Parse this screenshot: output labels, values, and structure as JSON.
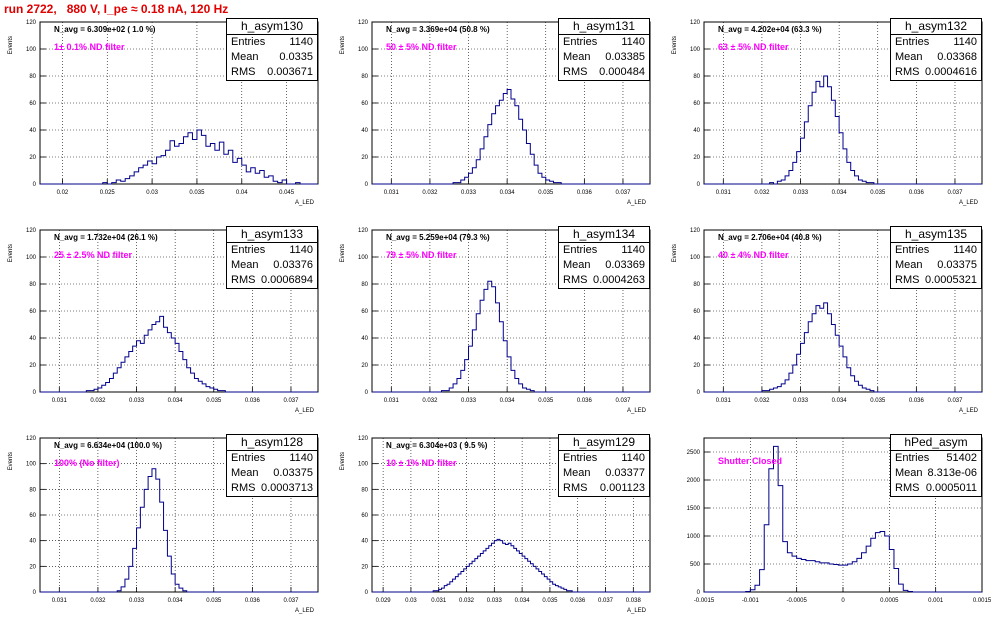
{
  "title": "run 2722,   880 V, I_pe ≈ 0.18 nA, 120 Hz",
  "colors": {
    "title": "#e00000",
    "filter_label": "#ff00ff",
    "line": "#00008b",
    "grid": "#000000"
  },
  "chart_data": [
    {
      "type": "histogram",
      "name": "h_asym130",
      "navg": "N_avg = 6.309e+02 ( 1.0 %)",
      "filter": "1± 0.1% ND filter",
      "stats": {
        "entries_label": "Entries",
        "entries": "1140",
        "mean_label": "Mean",
        "mean": "0.0335",
        "rms_label": "RMS",
        "rms": "0.003671"
      },
      "ylabel": "Events",
      "xlabel": "A_LED",
      "xlim": [
        0.0175,
        0.0485
      ],
      "ylim": [
        0,
        120
      ],
      "xticks": [
        "0.02",
        "0.025",
        "0.03",
        "0.035",
        "0.04",
        "0.045"
      ],
      "yticks": [
        "0",
        "20",
        "40",
        "60",
        "80",
        "100",
        "120"
      ],
      "grid": true,
      "bins": {
        "start": 0.0175,
        "width": 0.0005,
        "counts": [
          0,
          0,
          0,
          0,
          0,
          0,
          0,
          0,
          0,
          0,
          0,
          0,
          0,
          0,
          1,
          0,
          1,
          3,
          2,
          4,
          6,
          9,
          12,
          14,
          17,
          15,
          20,
          21,
          25,
          32,
          28,
          30,
          35,
          38,
          33,
          40,
          36,
          28,
          30,
          25,
          31,
          22,
          25,
          16,
          19,
          14,
          9,
          12,
          8,
          10,
          5,
          6,
          2,
          1,
          3,
          0,
          0,
          1,
          0,
          0,
          0,
          0
        ]
      }
    },
    {
      "type": "histogram",
      "name": "h_asym131",
      "navg": "N_avg = 3.369e+04 (50.8 %)",
      "filter": "50 ± 5% ND filter",
      "stats": {
        "entries_label": "Entries",
        "entries": "1140",
        "mean_label": "Mean",
        "mean": "0.03385",
        "rms_label": "RMS",
        "rms": "0.000484"
      },
      "ylabel": "Events",
      "xlabel": "A_LED",
      "xlim": [
        0.0305,
        0.0377
      ],
      "ylim": [
        0,
        120
      ],
      "xticks": [
        "0.031",
        "0.032",
        "0.033",
        "0.034",
        "0.035",
        "0.036",
        "0.037"
      ],
      "yticks": [
        "0",
        "20",
        "40",
        "60",
        "80",
        "100",
        "120"
      ],
      "grid": true,
      "bins": {
        "start": 0.0305,
        "width": 0.0001,
        "counts": [
          0,
          0,
          0,
          0,
          0,
          0,
          0,
          0,
          0,
          0,
          0,
          0,
          0,
          0,
          0,
          0,
          0,
          0,
          0,
          0,
          0,
          1,
          1,
          3,
          5,
          8,
          12,
          18,
          26,
          35,
          44,
          52,
          58,
          62,
          67,
          70,
          63,
          58,
          48,
          40,
          30,
          22,
          14,
          8,
          5,
          3,
          2,
          1,
          1,
          0,
          0,
          0,
          0,
          0,
          0,
          0,
          0,
          0,
          0,
          0,
          0,
          0,
          0,
          0,
          0,
          0,
          0,
          0,
          0,
          0,
          0,
          0
        ]
      }
    },
    {
      "type": "histogram",
      "name": "h_asym132",
      "navg": "N_avg = 4.202e+04 (63.3 %)",
      "filter": "63 ± 5% ND filter",
      "stats": {
        "entries_label": "Entries",
        "entries": "1140",
        "mean_label": "Mean",
        "mean": "0.03368",
        "rms_label": "RMS",
        "rms": "0.0004616"
      },
      "ylabel": "Events",
      "xlabel": "A_LED",
      "xlim": [
        0.0305,
        0.0377
      ],
      "ylim": [
        0,
        120
      ],
      "xticks": [
        "0.031",
        "0.032",
        "0.033",
        "0.034",
        "0.035",
        "0.036",
        "0.037"
      ],
      "yticks": [
        "0",
        "20",
        "40",
        "60",
        "80",
        "100",
        "120"
      ],
      "grid": true,
      "bins": {
        "start": 0.0305,
        "width": 0.0001,
        "counts": [
          0,
          0,
          0,
          0,
          0,
          0,
          0,
          0,
          0,
          0,
          0,
          0,
          0,
          0,
          0,
          0,
          0,
          1,
          0,
          2,
          3,
          6,
          10,
          16,
          24,
          34,
          46,
          58,
          68,
          76,
          72,
          80,
          72,
          62,
          50,
          38,
          26,
          16,
          10,
          6,
          3,
          2,
          1,
          1,
          0,
          0,
          0,
          0,
          0,
          0,
          0,
          0,
          0,
          0,
          0,
          0,
          0,
          0,
          0,
          0,
          0,
          0,
          0,
          0,
          0,
          0,
          0,
          0,
          0,
          0,
          0,
          0
        ]
      }
    },
    {
      "type": "histogram",
      "name": "h_asym133",
      "navg": "N_avg = 1.732e+04 (26.1 %)",
      "filter": "25 ± 2.5% ND filter",
      "stats": {
        "entries_label": "Entries",
        "entries": "1140",
        "mean_label": "Mean",
        "mean": "0.03376",
        "rms_label": "RMS",
        "rms": "0.0006894"
      },
      "ylabel": "Events",
      "xlabel": "A_LED",
      "xlim": [
        0.0305,
        0.0377
      ],
      "ylim": [
        0,
        120
      ],
      "xticks": [
        "0.031",
        "0.032",
        "0.033",
        "0.034",
        "0.035",
        "0.036",
        "0.037"
      ],
      "yticks": [
        "0",
        "20",
        "40",
        "60",
        "80",
        "100",
        "120"
      ],
      "grid": true,
      "bins": {
        "start": 0.0305,
        "width": 0.0001,
        "counts": [
          0,
          0,
          0,
          0,
          0,
          0,
          0,
          0,
          0,
          0,
          0,
          0,
          1,
          1,
          2,
          3,
          5,
          7,
          10,
          14,
          18,
          22,
          26,
          30,
          34,
          38,
          36,
          42,
          46,
          50,
          52,
          56,
          48,
          44,
          40,
          36,
          30,
          24,
          18,
          14,
          10,
          8,
          6,
          4,
          3,
          2,
          1,
          1,
          0,
          0,
          0,
          0,
          0,
          0,
          0,
          0,
          0,
          0,
          0,
          0,
          0,
          0,
          0,
          0,
          0,
          0,
          0,
          0,
          0,
          0,
          0,
          0
        ]
      }
    },
    {
      "type": "histogram",
      "name": "h_asym134",
      "navg": "N_avg = 5.259e+04 (79.3 %)",
      "filter": "79 ± 5% ND filter",
      "stats": {
        "entries_label": "Entries",
        "entries": "1140",
        "mean_label": "Mean",
        "mean": "0.03369",
        "rms_label": "RMS",
        "rms": "0.0004263"
      },
      "ylabel": "Events",
      "xlabel": "A_LED",
      "xlim": [
        0.0305,
        0.0377
      ],
      "ylim": [
        0,
        120
      ],
      "xticks": [
        "0.031",
        "0.032",
        "0.033",
        "0.034",
        "0.035",
        "0.036",
        "0.037"
      ],
      "yticks": [
        "0",
        "20",
        "40",
        "60",
        "80",
        "100",
        "120"
      ],
      "grid": true,
      "bins": {
        "start": 0.0305,
        "width": 0.0001,
        "counts": [
          0,
          0,
          0,
          0,
          0,
          0,
          0,
          0,
          0,
          0,
          0,
          0,
          0,
          0,
          0,
          0,
          0,
          0,
          1,
          1,
          3,
          6,
          10,
          16,
          24,
          34,
          46,
          58,
          68,
          76,
          82,
          78,
          66,
          52,
          38,
          26,
          16,
          10,
          6,
          3,
          2,
          1,
          0,
          0,
          0,
          0,
          0,
          0,
          0,
          0,
          0,
          0,
          0,
          0,
          0,
          0,
          0,
          0,
          0,
          0,
          0,
          0,
          0,
          0,
          0,
          0,
          0,
          0,
          0,
          0,
          0,
          0
        ]
      }
    },
    {
      "type": "histogram",
      "name": "h_asym135",
      "navg": "N_avg = 2.706e+04 (40.8 %)",
      "filter": "40 ± 4% ND filter",
      "stats": {
        "entries_label": "Entries",
        "entries": "1140",
        "mean_label": "Mean",
        "mean": "0.03375",
        "rms_label": "RMS",
        "rms": "0.0005321"
      },
      "ylabel": "Events",
      "xlabel": "A_LED",
      "xlim": [
        0.0305,
        0.0377
      ],
      "ylim": [
        0,
        120
      ],
      "xticks": [
        "0.031",
        "0.032",
        "0.033",
        "0.034",
        "0.035",
        "0.036",
        "0.037"
      ],
      "yticks": [
        "0",
        "20",
        "40",
        "60",
        "80",
        "100",
        "120"
      ],
      "grid": true,
      "bins": {
        "start": 0.0305,
        "width": 0.0001,
        "counts": [
          0,
          0,
          0,
          0,
          0,
          0,
          0,
          0,
          0,
          0,
          0,
          0,
          0,
          0,
          0,
          1,
          1,
          2,
          3,
          4,
          6,
          9,
          14,
          20,
          28,
          36,
          44,
          52,
          58,
          64,
          62,
          66,
          58,
          50,
          42,
          34,
          26,
          18,
          12,
          8,
          5,
          3,
          2,
          1,
          0,
          0,
          0,
          0,
          0,
          0,
          0,
          0,
          0,
          0,
          0,
          0,
          0,
          0,
          0,
          0,
          0,
          0,
          0,
          0,
          0,
          0,
          0,
          0,
          0,
          0,
          0,
          0
        ]
      }
    },
    {
      "type": "histogram",
      "name": "h_asym128",
      "navg": "N_avg = 6.634e+04 (100.0 %)",
      "filter": "100% (No filter)",
      "stats": {
        "entries_label": "Entries",
        "entries": "1140",
        "mean_label": "Mean",
        "mean": "0.03375",
        "rms_label": "RMS",
        "rms": "0.0003713"
      },
      "ylabel": "Events",
      "xlabel": "A_LED",
      "xlim": [
        0.0305,
        0.0377
      ],
      "ylim": [
        0,
        120
      ],
      "xticks": [
        "0.031",
        "0.032",
        "0.033",
        "0.034",
        "0.035",
        "0.036",
        "0.037"
      ],
      "yticks": [
        "0",
        "20",
        "40",
        "60",
        "80",
        "100",
        "120"
      ],
      "grid": true,
      "bins": {
        "start": 0.0305,
        "width": 0.0001,
        "counts": [
          0,
          0,
          0,
          0,
          0,
          0,
          0,
          0,
          0,
          0,
          0,
          0,
          0,
          0,
          0,
          0,
          0,
          0,
          0,
          0,
          1,
          4,
          10,
          20,
          34,
          50,
          66,
          80,
          90,
          96,
          88,
          70,
          48,
          28,
          14,
          6,
          3,
          1,
          0,
          0,
          0,
          0,
          0,
          0,
          0,
          0,
          0,
          0,
          0,
          0,
          0,
          0,
          0,
          0,
          0,
          0,
          0,
          0,
          0,
          0,
          0,
          0,
          0,
          0,
          0,
          0,
          0,
          0,
          0,
          0,
          0,
          0
        ]
      }
    },
    {
      "type": "histogram",
      "name": "h_asym129",
      "navg": "N_avg = 6.304e+03 ( 9.5 %)",
      "filter": "10 ± 1% ND filter",
      "stats": {
        "entries_label": "Entries",
        "entries": "1140",
        "mean_label": "Mean",
        "mean": "0.03377",
        "rms_label": "RMS",
        "rms": "0.001123"
      },
      "ylabel": "Events",
      "xlabel": "A_LED",
      "xlim": [
        0.0286,
        0.0386
      ],
      "ylim": [
        0,
        120
      ],
      "xticks": [
        "0.029",
        "0.03",
        "0.031",
        "0.032",
        "0.033",
        "0.034",
        "0.035",
        "0.036",
        "0.037",
        "0.038"
      ],
      "yticks": [
        "0",
        "20",
        "40",
        "60",
        "80",
        "100",
        "120"
      ],
      "grid": true,
      "bins": {
        "start": 0.0286,
        "width": 0.0001,
        "counts": [
          0,
          0,
          0,
          0,
          0,
          0,
          0,
          0,
          0,
          0,
          0,
          0,
          0,
          0,
          0,
          0,
          0,
          0,
          0,
          0,
          0,
          0,
          1,
          1,
          2,
          3,
          5,
          6,
          8,
          10,
          12,
          14,
          16,
          18,
          20,
          22,
          24,
          26,
          28,
          30,
          32,
          34,
          36,
          38,
          40,
          41,
          40,
          38,
          37,
          38,
          36,
          34,
          32,
          30,
          28,
          26,
          24,
          22,
          20,
          18,
          16,
          14,
          12,
          10,
          8,
          6,
          5,
          4,
          3,
          2,
          1,
          1,
          0,
          0,
          0,
          0,
          0,
          0,
          0,
          0,
          0,
          0,
          0,
          0,
          0,
          0,
          0,
          0,
          0,
          0,
          0,
          0,
          0,
          0,
          0,
          0,
          0,
          0,
          0,
          0
        ]
      }
    },
    {
      "type": "histogram",
      "name": "hPed_asym",
      "navg": "",
      "filter": "Shutter Closed",
      "stats": {
        "entries_label": "Entries",
        "entries": "51402",
        "mean_label": "Mean",
        "mean": "8.313e-06",
        "rms_label": "RMS",
        "rms": "0.0005011"
      },
      "ylabel": "",
      "xlabel": "",
      "xlim": [
        -0.0015,
        0.0015
      ],
      "ylim": [
        0,
        2750
      ],
      "xticks": [
        "-0.0015",
        "-0.001",
        "-0.0005",
        "0",
        "0.0005",
        "0.001",
        "0.0015"
      ],
      "yticks": [
        "0",
        "500",
        "1000",
        "1500",
        "2000",
        "2500"
      ],
      "grid": true,
      "bins": {
        "start": -0.0015,
        "width": 5e-05,
        "counts": [
          0,
          0,
          0,
          0,
          0,
          0,
          0,
          0,
          0,
          10,
          40,
          120,
          400,
          1200,
          2200,
          2600,
          1900,
          900,
          700,
          640,
          600,
          580,
          560,
          560,
          540,
          520,
          520,
          500,
          490,
          480,
          480,
          500,
          540,
          600,
          700,
          820,
          960,
          1060,
          1080,
          1000,
          760,
          420,
          140,
          30,
          10,
          0,
          0,
          0,
          0,
          0,
          0,
          0,
          0,
          0,
          0,
          0,
          0,
          0,
          0,
          0
        ]
      }
    }
  ]
}
